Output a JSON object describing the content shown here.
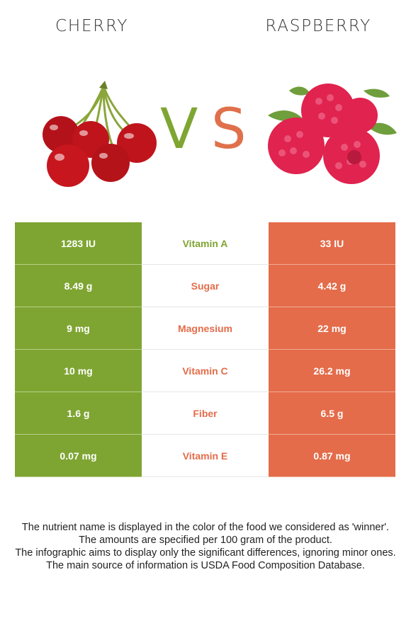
{
  "header": {
    "left_title": "CHERRY",
    "right_title": "RASPBERRY",
    "vs_v": "V",
    "vs_s": "S"
  },
  "colors": {
    "cherry": "#7ea532",
    "raspberry": "#e46c4a"
  },
  "rows": [
    {
      "left": "1283 IU",
      "nutrient": "Vitamin A",
      "right": "33 IU",
      "winner": "cherry"
    },
    {
      "left": "8.49 g",
      "nutrient": "Sugar",
      "right": "4.42 g",
      "winner": "raspberry"
    },
    {
      "left": "9 mg",
      "nutrient": "Magnesium",
      "right": "22 mg",
      "winner": "raspberry"
    },
    {
      "left": "10 mg",
      "nutrient": "Vitamin C",
      "right": "26.2 mg",
      "winner": "raspberry"
    },
    {
      "left": "1.6 g",
      "nutrient": "Fiber",
      "right": "6.5 g",
      "winner": "raspberry"
    },
    {
      "left": "0.07 mg",
      "nutrient": "Vitamin E",
      "right": "0.87 mg",
      "winner": "raspberry"
    }
  ],
  "footer": [
    "The nutrient name is displayed in the color of the food we considered as 'winner'.",
    "The amounts are specified per 100 gram of the product.",
    "The infographic aims to display only the significant differences, ignoring minor ones.",
    "The main source of information is USDA Food Composition Database."
  ]
}
